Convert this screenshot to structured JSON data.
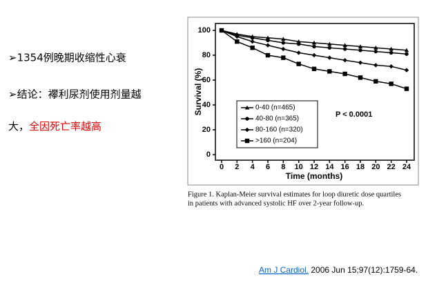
{
  "bullets": [
    "➢1354例晚期收缩性心衰",
    "➢结论：襻利尿剂使用剂量越"
  ],
  "conclusion": {
    "plain": "大，",
    "highlight": "全因死亡率越高",
    "highlight_color": "#e00000"
  },
  "chart_data": {
    "type": "line",
    "ylabel": "Survival (%)",
    "xlabel": "Time (months)",
    "annotation": "P < 0.0001",
    "x": [
      0,
      2,
      4,
      6,
      8,
      10,
      12,
      14,
      16,
      18,
      20,
      22,
      24
    ],
    "xlim": [
      0,
      24
    ],
    "xticks": [
      0,
      2,
      4,
      6,
      8,
      10,
      12,
      14,
      16,
      18,
      20,
      22,
      24
    ],
    "ylim": [
      0,
      100
    ],
    "yticks": [
      0,
      20,
      40,
      60,
      80,
      100
    ],
    "series": [
      {
        "name": "0-40 (n=465)",
        "color": "#000000",
        "marker": "triangle",
        "values": [
          100,
          97,
          95,
          94,
          93,
          91,
          90,
          89,
          88,
          87,
          86,
          85,
          84
        ]
      },
      {
        "name": "40-80 (n=365)",
        "color": "#000000",
        "marker": "circle",
        "values": [
          100,
          96,
          94,
          92,
          90,
          89,
          87,
          86,
          85,
          84,
          83,
          82,
          81
        ]
      },
      {
        "name": "80-160 (n=320)",
        "color": "#000000",
        "marker": "diamond",
        "values": [
          100,
          95,
          91,
          88,
          85,
          82,
          80,
          78,
          76,
          74,
          72,
          71,
          68
        ]
      },
      {
        "name": ">160 (n=204)",
        "color": "#000000",
        "marker": "square",
        "values": [
          100,
          91,
          86,
          80,
          78,
          73,
          69,
          67,
          65,
          62,
          59,
          57,
          53
        ]
      }
    ]
  },
  "caption": [
    "Figure 1. Kaplan-Meier survival estimates for loop diuretic dose quartiles",
    "in patients with advanced systolic HF over 2-year follow-up."
  ],
  "citation": {
    "link": "Am J Cardiol.",
    "rest": " 2006 Jun 15;97(12):1759-64."
  }
}
